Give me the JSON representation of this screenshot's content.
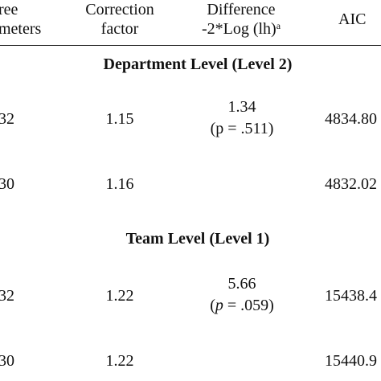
{
  "header": {
    "col_params_line1": "ree",
    "col_params_line2": "meters",
    "col_corr_line1": "Correction",
    "col_corr_line2": "factor",
    "col_diff_line1": "Difference",
    "col_diff_line2": "-2*Log (lh)",
    "col_diff_sup": "a",
    "col_aic": "AIC"
  },
  "sections": [
    {
      "title": "Department Level (Level 2)",
      "rows": [
        {
          "params": "32",
          "correction": "1.15",
          "difference": "1.34",
          "p_prefix": "(p = .511)",
          "aic": "4834.80"
        },
        {
          "params": "30",
          "correction": "1.16",
          "difference": "",
          "aic": "4832.02"
        }
      ]
    },
    {
      "title": "Team Level (Level 1)",
      "rows": [
        {
          "params": "32",
          "correction": "1.22",
          "difference": "5.66",
          "p_open": "(",
          "p_italic": "p",
          "p_rest": " = .059)",
          "aic": "15438.4"
        },
        {
          "params": "30",
          "correction": "1.22",
          "difference": "",
          "aic": "15440.9"
        }
      ]
    }
  ]
}
